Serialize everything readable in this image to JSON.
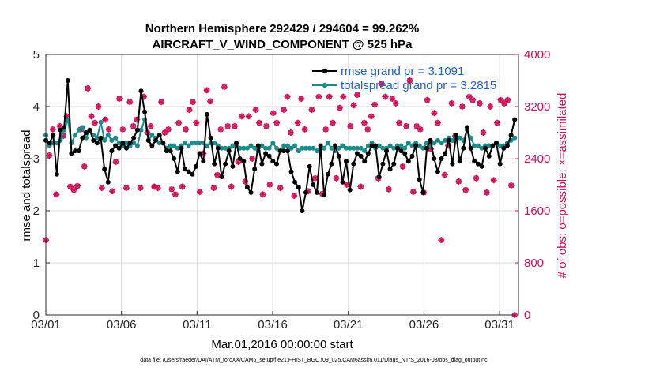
{
  "chart_data": {
    "type": "line",
    "title_line1": "Northern Hemisphere 292429 / 294604 = 99.262%",
    "title_line2": "AIRCRAFT_V_WIND_COMPONENT @ 525 hPa",
    "xlabel": "Mar.01,2016 00:00:00 start",
    "ylabel_left": "rmse and totalspread",
    "ylabel_right": "# of obs: o=possible; ×=assimilated",
    "footnote": "data file: /Users/raeder/DAI/ATM_forcXX/CAM6_setup/f.e21.FHIST_BGC.f09_025.CAM6assim.011/Diags_NTrS_2016-03/obs_diag_output.nc",
    "x_tick_labels": [
      "03/01",
      "03/06",
      "03/11",
      "03/16",
      "03/21",
      "03/26",
      "03/31"
    ],
    "x_tick_days": [
      0,
      5,
      10,
      15,
      20,
      25,
      30
    ],
    "xlim_days": [
      0,
      31.25
    ],
    "ylim_left": [
      0,
      5
    ],
    "y_ticks_left": [
      "0",
      "1",
      "2",
      "3",
      "4",
      "5"
    ],
    "ylim_right": [
      0,
      4000
    ],
    "y_ticks_right": [
      "0",
      "800",
      "1600",
      "2400",
      "3200",
      "4000"
    ],
    "grid": true,
    "legend_position": "top-right",
    "colors": {
      "rmse": "#000000",
      "spread": "#1a8a8a",
      "obs": "#d1105a",
      "legend_text": "#1f5fd6",
      "grid": "#dcdcdc"
    },
    "series": [
      {
        "name": "rmse grand pr = 3.1091",
        "values": [
          3.35,
          3.3,
          3.45,
          2.7,
          3.55,
          3.6,
          4.5,
          3.1,
          3.15,
          3.15,
          3.4,
          3.5,
          3.55,
          3.35,
          3.3,
          3.4,
          2.8,
          2.55,
          3.15,
          3.25,
          3.2,
          3.3,
          3.2,
          3.3,
          3.4,
          3.55,
          4.3,
          3.9,
          3.35,
          3.25,
          3.35,
          3.45,
          3.3,
          3.15,
          3.15,
          3.0,
          2.75,
          3.2,
          2.8,
          2.75,
          2.7,
          2.85,
          3.1,
          2.95,
          3.85,
          3.4,
          2.9,
          3.2,
          2.65,
          2.9,
          3.15,
          2.85,
          3.3,
          3.0,
          2.95,
          2.45,
          2.35,
          2.8,
          3.25,
          2.9,
          3.1,
          3.05,
          2.95,
          2.9,
          3.15,
          3.15,
          3.15,
          2.75,
          2.55,
          2.45,
          2.0,
          2.35,
          2.85,
          2.5,
          2.35,
          3.25,
          2.3,
          2.7,
          2.9,
          3.25,
          3.05,
          2.55,
          2.95,
          2.4,
          2.9,
          3.1,
          3.05,
          2.95,
          3.1,
          3.25,
          3.25,
          2.65,
          2.9,
          3.15,
          2.8,
          2.9,
          3.2,
          3.15,
          3.1,
          2.95,
          3.05,
          3.25,
          2.6,
          2.35,
          3.2,
          3.35,
          3.0,
          2.75,
          3.0,
          3.1,
          3.35,
          2.9,
          3.45,
          2.95,
          3.2,
          3.6,
          3.2,
          2.95,
          2.9,
          2.85,
          3.2,
          3.05,
          3.25,
          3.3,
          2.9,
          3.2,
          3.25,
          3.45,
          3.75
        ]
      },
      {
        "name": "totalspread grand pr = 3.2815",
        "values": [
          3.45,
          3.25,
          3.3,
          3.3,
          3.35,
          3.55,
          3.75,
          3.3,
          3.45,
          3.55,
          3.6,
          3.4,
          3.55,
          3.45,
          3.4,
          3.7,
          3.35,
          3.45,
          3.35,
          3.4,
          3.3,
          3.25,
          3.3,
          3.25,
          3.3,
          3.25,
          3.55,
          3.75,
          3.35,
          3.45,
          3.4,
          3.3,
          3.3,
          3.2,
          3.25,
          3.25,
          3.2,
          3.25,
          3.3,
          3.25,
          3.3,
          3.3,
          3.3,
          3.3,
          3.25,
          3.3,
          3.3,
          3.25,
          3.2,
          3.2,
          3.2,
          3.25,
          3.25,
          3.2,
          3.2,
          3.2,
          3.25,
          3.2,
          3.15,
          3.25,
          3.2,
          3.2,
          3.3,
          3.2,
          3.15,
          3.25,
          3.25,
          3.2,
          3.25,
          3.15,
          3.2,
          3.2,
          3.2,
          3.2,
          3.15,
          3.2,
          3.2,
          3.3,
          3.2,
          3.15,
          3.2,
          3.25,
          3.2,
          3.2,
          3.2,
          3.2,
          3.2,
          3.15,
          3.25,
          3.3,
          3.2,
          3.25,
          3.2,
          3.2,
          3.25,
          3.2,
          3.25,
          3.25,
          3.2,
          3.3,
          3.25,
          3.3,
          3.25,
          3.2,
          3.3,
          3.25,
          3.3,
          3.35,
          3.3,
          3.35,
          3.4,
          3.35,
          3.4,
          3.4,
          3.35,
          3.55,
          3.4,
          3.25,
          3.25,
          3.2,
          3.25,
          3.25,
          3.25,
          3.3,
          3.25,
          3.25,
          3.3,
          3.35,
          3.4
        ]
      },
      {
        "name": "# of obs possible / assimilated",
        "values": [
          1150,
          2450,
          2850,
          1850,
          2900,
          2750,
          3050,
          1970,
          1920,
          1980,
          2850,
          2280,
          3480,
          3050,
          2950,
          3200,
          1950,
          3000,
          2850,
          1900,
          2350,
          3320,
          2850,
          1950,
          3270,
          2900,
          3000,
          1950,
          3350,
          2800,
          2900,
          1970,
          1950,
          3270,
          2800,
          2850,
          1930,
          1850,
          2950,
          1970,
          2850,
          3150,
          3270,
          2950,
          1890,
          2480,
          3450,
          3280,
          1950,
          2150,
          2850,
          3500,
          2900,
          1970,
          2900,
          2350,
          3050,
          2050,
          3050,
          2400,
          3150,
          2950,
          1850,
          2900,
          2000,
          3100,
          2950,
          1950,
          3150,
          3350,
          2800,
          1830,
          2950,
          3320,
          2850,
          1900,
          3150,
          2100,
          3350,
          1860,
          2850,
          3350,
          2950,
          2100,
          3180,
          3350,
          2000,
          2900,
          3220,
          3380,
          1970,
          2950,
          2850,
          3050,
          3230,
          2100,
          3550,
          3350,
          1930,
          3320,
          3250,
          2950,
          2280,
          2900,
          3600,
          1890,
          2900,
          2850,
          1880,
          3300,
          2550,
          3100,
          2950,
          1150,
          2150,
          2600,
          3250,
          2750,
          2050,
          3200,
          1920,
          3350,
          3300,
          2100,
          3250,
          2800,
          1880,
          3200,
          2070,
          2950,
          3300,
          3250,
          3300,
          1990,
          0
        ]
      }
    ]
  }
}
